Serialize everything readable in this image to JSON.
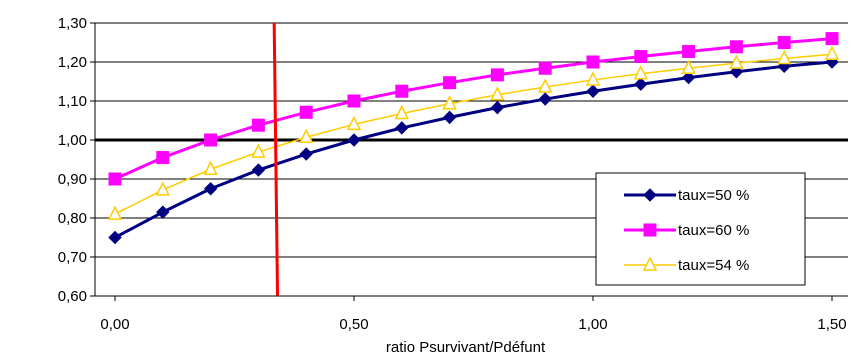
{
  "chart_data": {
    "type": "line",
    "xlabel": "ratio Psurvivant/Pdéfunt",
    "ylabel": "",
    "xlim": [
      0,
      1.5
    ],
    "ylim": [
      0.6,
      1.3
    ],
    "grid": "horizontal",
    "legend_position": "bottom-right",
    "x_ticks": [
      0.0,
      0.5,
      1.0,
      1.5
    ],
    "x_tick_labels": [
      "0,00",
      "0,50",
      "1,00",
      "1,50"
    ],
    "y_ticks": [
      0.6,
      0.7,
      0.8,
      0.9,
      1.0,
      1.1,
      1.2,
      1.3
    ],
    "y_tick_labels": [
      "0,60",
      "0,70",
      "0,80",
      "0,90",
      "1,00",
      "1,10",
      "1,20",
      "1,30"
    ],
    "x": [
      0.0,
      0.1,
      0.2,
      0.3,
      0.4,
      0.5,
      0.6,
      0.7,
      0.8,
      0.9,
      1.0,
      1.1,
      1.2,
      1.3,
      1.4,
      1.5
    ],
    "series": [
      {
        "name": "taux=50 %",
        "color": "#000080",
        "marker": "diamond",
        "values": [
          0.75,
          0.815,
          0.875,
          0.923,
          0.964,
          1.0,
          1.031,
          1.058,
          1.083,
          1.105,
          1.125,
          1.143,
          1.16,
          1.175,
          1.189,
          1.2
        ]
      },
      {
        "name": "taux=60 %",
        "color": "#ff00ff",
        "marker": "square",
        "values": [
          0.9,
          0.955,
          1.0,
          1.038,
          1.071,
          1.1,
          1.125,
          1.147,
          1.167,
          1.184,
          1.2,
          1.214,
          1.227,
          1.239,
          1.25,
          1.26
        ]
      },
      {
        "name": "taux=54 %",
        "color": "#ffcc00",
        "marker": "triangle",
        "values": [
          0.81,
          0.872,
          0.925,
          0.969,
          1.007,
          1.04,
          1.068,
          1.093,
          1.116,
          1.136,
          1.154,
          1.17,
          1.184,
          1.197,
          1.209,
          1.22
        ]
      }
    ],
    "reference_lines": [
      {
        "orientation": "horizontal",
        "value": 1.0,
        "color": "#000000"
      },
      {
        "orientation": "vertical",
        "x_top": 0.333,
        "x_bottom": 0.34,
        "color": "#ff0000"
      }
    ]
  }
}
